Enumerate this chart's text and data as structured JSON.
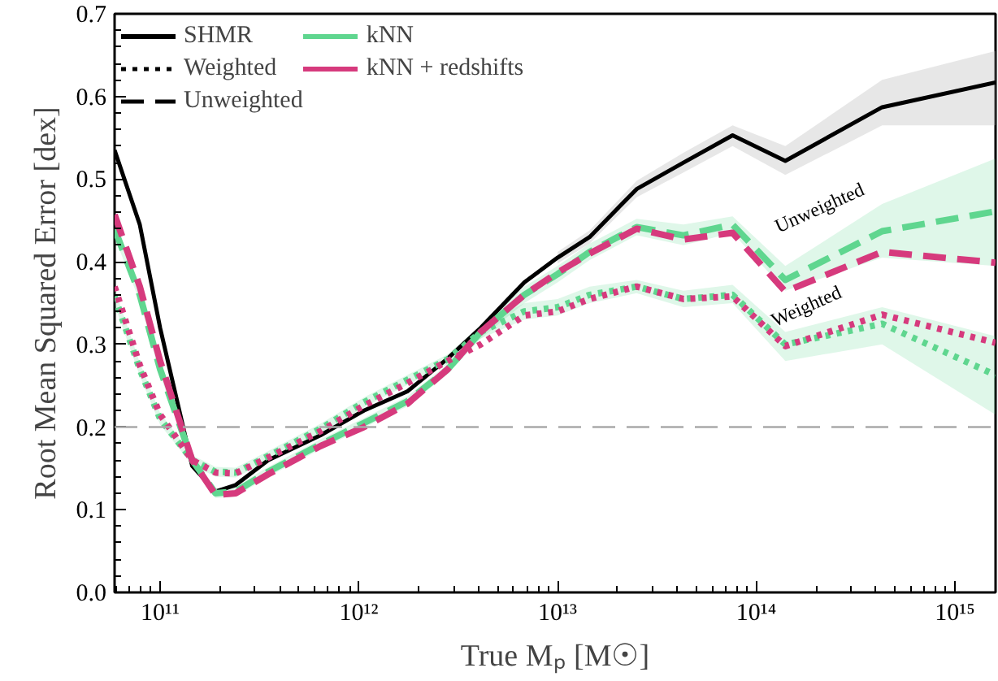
{
  "chart_data": {
    "type": "line",
    "xlabel": "True Mₚ [M☉]",
    "ylabel": "Root Mean Squared Error [dex]",
    "x": [
      59000000000.0,
      79000000000.0,
      100000000000.0,
      145000000000.0,
      190000000000.0,
      240000000000.0,
      350000000000.0,
      640000000000.0,
      1060000000000.0,
      1750000000000.0,
      2800000000000.0,
      4100000000000.0,
      6800000000000.0,
      10000000000000.0,
      14500000000000.0,
      25000000000000.0,
      43000000000000.0,
      76000000000000.0,
      140000000000000.0,
      430000000000000.0,
      1600000000000000.0
    ],
    "series": [
      {
        "name": "SHMR",
        "color": "#000000",
        "line_style": "solid",
        "values": [
          0.535,
          0.445,
          0.32,
          0.153,
          0.122,
          0.13,
          0.16,
          0.19,
          0.22,
          0.243,
          0.283,
          0.32,
          0.375,
          0.405,
          0.43,
          0.488,
          0.52,
          0.553,
          0.522,
          0.587,
          0.617
        ],
        "lower": [
          null,
          null,
          null,
          null,
          null,
          null,
          null,
          null,
          null,
          null,
          null,
          null,
          null,
          0.398,
          0.422,
          0.478,
          0.508,
          0.54,
          0.505,
          0.565,
          0.565
        ],
        "upper": [
          null,
          null,
          null,
          null,
          null,
          null,
          null,
          null,
          null,
          null,
          null,
          null,
          null,
          0.412,
          0.438,
          0.498,
          0.532,
          0.565,
          0.54,
          0.62,
          0.655
        ]
      },
      {
        "color": "#5fd68f",
        "line_style": "dotted",
        "values": [
          0.358,
          0.27,
          0.21,
          0.16,
          0.146,
          0.145,
          0.165,
          0.198,
          0.23,
          0.257,
          0.282,
          0.315,
          0.34,
          0.345,
          0.36,
          0.37,
          0.355,
          0.36,
          0.3,
          0.325,
          0.263
        ],
        "lower": [
          0.348,
          0.262,
          0.203,
          0.154,
          0.14,
          0.139,
          0.159,
          0.192,
          0.224,
          0.251,
          0.276,
          0.307,
          0.33,
          0.335,
          0.35,
          0.362,
          0.345,
          0.35,
          0.28,
          0.3,
          0.215
        ],
        "upper": [
          0.368,
          0.278,
          0.217,
          0.166,
          0.152,
          0.151,
          0.171,
          0.204,
          0.236,
          0.263,
          0.288,
          0.323,
          0.35,
          0.355,
          0.37,
          0.378,
          0.365,
          0.372,
          0.315,
          0.345,
          0.31
        ]
      },
      {
        "name": "kNN",
        "color": "#5fd68f",
        "line_style": "dashed",
        "values": [
          0.44,
          0.36,
          0.27,
          0.16,
          0.12,
          0.122,
          0.146,
          0.179,
          0.205,
          0.231,
          0.27,
          0.315,
          0.36,
          0.385,
          0.412,
          0.442,
          0.432,
          0.445,
          0.378,
          0.437,
          0.461
        ],
        "lower": [
          0.43,
          0.352,
          0.263,
          0.154,
          0.114,
          0.116,
          0.14,
          0.173,
          0.199,
          0.225,
          0.264,
          0.307,
          0.35,
          0.375,
          0.402,
          0.432,
          0.42,
          0.435,
          0.365,
          0.405,
          0.395
        ],
        "upper": [
          0.45,
          0.368,
          0.277,
          0.166,
          0.126,
          0.128,
          0.152,
          0.185,
          0.211,
          0.237,
          0.276,
          0.323,
          0.37,
          0.395,
          0.422,
          0.452,
          0.445,
          0.455,
          0.395,
          0.47,
          0.525
        ]
      },
      {
        "color": "#d63a7d",
        "line_style": "dotted",
        "values": [
          0.37,
          0.275,
          0.215,
          0.16,
          0.145,
          0.144,
          0.163,
          0.195,
          0.226,
          0.253,
          0.28,
          0.3,
          0.335,
          0.34,
          0.355,
          0.37,
          0.355,
          0.358,
          0.298,
          0.336,
          0.302
        ]
      },
      {
        "name": "kNN + redshifts",
        "color": "#d63a7d",
        "line_style": "dashed",
        "values": [
          0.457,
          0.37,
          0.28,
          0.16,
          0.118,
          0.12,
          0.143,
          0.177,
          0.2,
          0.228,
          0.27,
          0.315,
          0.36,
          0.387,
          0.41,
          0.44,
          0.427,
          0.435,
          0.364,
          0.412,
          0.399
        ]
      }
    ],
    "annotations": [
      "Weighted",
      "Unweighted",
      "Unweighted",
      "Weighted"
    ],
    "ref_lines": [
      {
        "axis": "y",
        "value": 0.2,
        "color": "#aaaaaa",
        "line_style": "dashed"
      }
    ],
    "log": "x",
    "xlim": [
      59000000000.0,
      1600000000000000.0
    ],
    "ylim": [
      0.0,
      0.7
    ],
    "xticks": [
      {
        "value": 100000000000.0,
        "label": "10¹¹"
      },
      {
        "value": 1000000000000.0,
        "label": "10¹²"
      },
      {
        "value": 10000000000000.0,
        "label": "10¹³"
      },
      {
        "value": 100000000000000.0,
        "label": "10¹⁴"
      },
      {
        "value": 1000000000000000.0,
        "label": "10¹⁵"
      }
    ],
    "yticks": [
      {
        "value": 0.0,
        "label": "0.0"
      },
      {
        "value": 0.1,
        "label": "0.1"
      },
      {
        "value": 0.2,
        "label": "0.2"
      },
      {
        "value": 0.3,
        "label": "0.3"
      },
      {
        "value": 0.4,
        "label": "0.4"
      },
      {
        "value": 0.5,
        "label": "0.5"
      },
      {
        "value": 0.6,
        "label": "0.6"
      },
      {
        "value": 0.7,
        "label": "0.7"
      }
    ],
    "grid": false,
    "legend": "top left"
  }
}
